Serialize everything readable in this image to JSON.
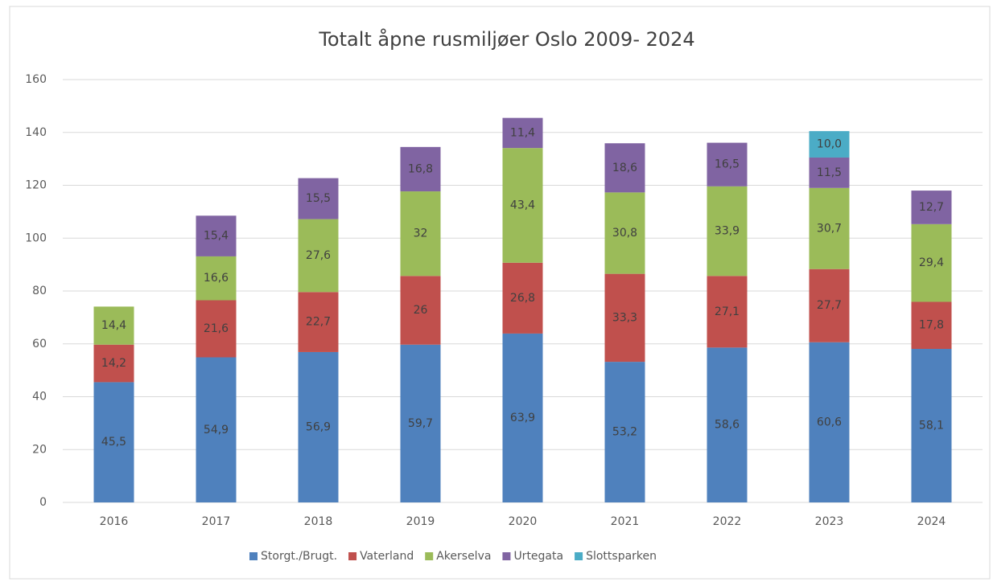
{
  "chart_data": {
    "type": "stacked_bar",
    "title": "Totalt åpne rusmiljøer Oslo 2009- 2024",
    "categories": [
      "2016",
      "2017",
      "2018",
      "2019",
      "2020",
      "2021",
      "2022",
      "2023",
      "2024"
    ],
    "series": [
      {
        "name": "Storgt./Brugt.",
        "color": "#4f81bd",
        "values": [
          45.5,
          54.9,
          56.9,
          59.7,
          63.9,
          53.2,
          58.6,
          60.6,
          58.1
        ],
        "value_labels": [
          "45,5",
          "54,9",
          "56,9",
          "59,7",
          "63,9",
          "53,2",
          "58,6",
          "60,6",
          "58,1"
        ]
      },
      {
        "name": "Vaterland",
        "color": "#c0504d",
        "values": [
          14.2,
          21.6,
          22.7,
          26,
          26.8,
          33.3,
          27.1,
          27.7,
          17.8
        ],
        "value_labels": [
          "14,2",
          "21,6",
          "22,7",
          "26",
          "26,8",
          "33,3",
          "27,1",
          "27,7",
          "17,8"
        ]
      },
      {
        "name": "Akerselva",
        "color": "#9bbb59",
        "values": [
          14.4,
          16.6,
          27.6,
          32,
          43.4,
          30.8,
          33.9,
          30.7,
          29.4
        ],
        "value_labels": [
          "14,4",
          "16,6",
          "27,6",
          "32",
          "43,4",
          "30,8",
          "33,9",
          "30,7",
          "29,4"
        ]
      },
      {
        "name": "Urtegata",
        "color": "#8064a2",
        "values": [
          null,
          15.4,
          15.5,
          16.8,
          11.4,
          18.6,
          16.5,
          11.5,
          12.7
        ],
        "value_labels": [
          null,
          "15,4",
          "15,5",
          "16,8",
          "11,4",
          "18,6",
          "16,5",
          "11,5",
          "12,7"
        ]
      },
      {
        "name": "Slottsparken",
        "color": "#4bacc6",
        "values": [
          null,
          null,
          null,
          null,
          null,
          null,
          null,
          10.0,
          null
        ],
        "value_labels": [
          null,
          null,
          null,
          null,
          null,
          null,
          null,
          "10,0",
          null
        ]
      }
    ],
    "ylim": [
      0,
      160
    ],
    "yticks": [
      0,
      20,
      40,
      60,
      80,
      100,
      120,
      140,
      160
    ],
    "grid": true,
    "legend": "bottom"
  }
}
